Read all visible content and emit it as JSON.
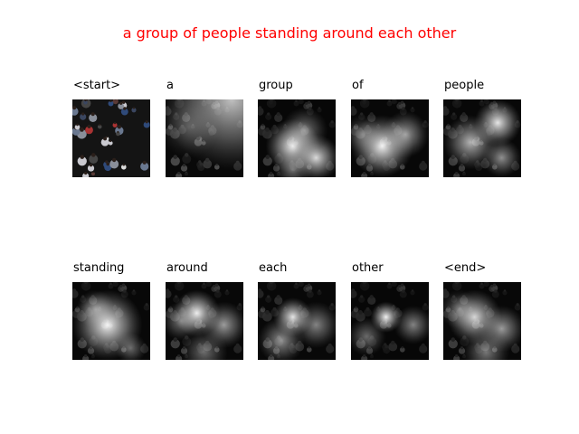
{
  "caption": "a group of people standing around each other",
  "caption_color": "#ff0000",
  "words": [
    "<start>",
    "a",
    "group",
    "of",
    "people",
    "standing",
    "around",
    "each",
    "other",
    "<end>"
  ],
  "panels": [
    {
      "kind": "original"
    },
    {
      "kind": "attention",
      "spots": [
        [
          0.85,
          0.0,
          0.9,
          0.75
        ],
        [
          0.3,
          0.35,
          0.4,
          0.25
        ]
      ],
      "base": 0.2
    },
    {
      "kind": "attention",
      "spots": [
        [
          0.45,
          0.6,
          0.35,
          0.95
        ],
        [
          0.75,
          0.75,
          0.3,
          0.85
        ],
        [
          0.6,
          0.4,
          0.3,
          0.45
        ],
        [
          0.45,
          0.9,
          0.25,
          0.4
        ]
      ],
      "base": 0.1
    },
    {
      "kind": "attention",
      "spots": [
        [
          0.4,
          0.6,
          0.4,
          0.95
        ],
        [
          0.7,
          0.45,
          0.3,
          0.6
        ],
        [
          0.15,
          0.45,
          0.25,
          0.35
        ]
      ],
      "base": 0.12
    },
    {
      "kind": "attention",
      "spots": [
        [
          0.7,
          0.3,
          0.3,
          0.9
        ],
        [
          0.35,
          0.55,
          0.35,
          0.7
        ],
        [
          0.75,
          0.75,
          0.25,
          0.55
        ]
      ],
      "base": 0.12
    },
    {
      "kind": "attention",
      "spots": [
        [
          0.45,
          0.55,
          0.45,
          0.95
        ],
        [
          0.3,
          0.35,
          0.25,
          0.45
        ],
        [
          0.75,
          0.85,
          0.2,
          0.4
        ]
      ],
      "base": 0.12
    },
    {
      "kind": "attention",
      "spots": [
        [
          0.4,
          0.4,
          0.3,
          0.95
        ],
        [
          0.75,
          0.55,
          0.3,
          0.6
        ],
        [
          0.2,
          0.5,
          0.25,
          0.45
        ],
        [
          0.5,
          0.9,
          0.3,
          0.4
        ]
      ],
      "base": 0.12
    },
    {
      "kind": "attention",
      "spots": [
        [
          0.45,
          0.45,
          0.25,
          0.9
        ],
        [
          0.3,
          0.75,
          0.3,
          0.55
        ],
        [
          0.75,
          0.55,
          0.3,
          0.5
        ]
      ],
      "base": 0.12
    },
    {
      "kind": "attention",
      "spots": [
        [
          0.45,
          0.45,
          0.2,
          0.95
        ],
        [
          0.8,
          0.55,
          0.25,
          0.5
        ],
        [
          0.2,
          0.7,
          0.25,
          0.4
        ]
      ],
      "base": 0.08
    },
    {
      "kind": "attention",
      "spots": [
        [
          0.4,
          0.45,
          0.35,
          0.85
        ],
        [
          0.75,
          0.6,
          0.3,
          0.6
        ],
        [
          0.2,
          0.35,
          0.25,
          0.35
        ],
        [
          0.55,
          0.9,
          0.3,
          0.45
        ]
      ],
      "base": 0.12
    }
  ]
}
